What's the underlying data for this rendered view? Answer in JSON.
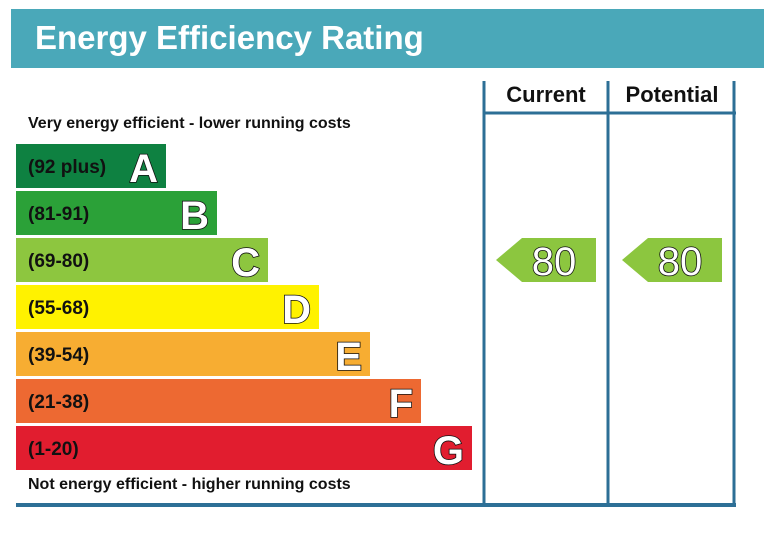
{
  "header": {
    "title": "Energy Efficiency Rating",
    "color": "#4aa8b9"
  },
  "captions": {
    "top": "Very energy efficient - lower running costs",
    "bottom": "Not energy efficient - higher running costs"
  },
  "columns": {
    "current": "Current",
    "potential": "Potential"
  },
  "colors": {
    "frame": "#2d6f96",
    "arrow": "#8cc63f",
    "A": "#0e8141",
    "B": "#2ba138",
    "C": "#8dc63f",
    "D": "#fff200",
    "E": "#f7ad32",
    "F": "#ed6932",
    "G": "#e11d2f"
  },
  "chart_data": {
    "type": "bar",
    "categories": [
      "A",
      "B",
      "C",
      "D",
      "E",
      "F",
      "G"
    ],
    "bands": [
      {
        "letter": "A",
        "range": "(92 plus)",
        "min": 92,
        "max": null
      },
      {
        "letter": "B",
        "range": "(81-91)",
        "min": 81,
        "max": 91
      },
      {
        "letter": "C",
        "range": "(69-80)",
        "min": 69,
        "max": 80
      },
      {
        "letter": "D",
        "range": "(55-68)",
        "min": 55,
        "max": 68
      },
      {
        "letter": "E",
        "range": "(39-54)",
        "min": 39,
        "max": 54
      },
      {
        "letter": "F",
        "range": "(21-38)",
        "min": 21,
        "max": 38
      },
      {
        "letter": "G",
        "range": "(1-20)",
        "min": 1,
        "max": 20
      }
    ],
    "series": [
      {
        "name": "Current",
        "value": 80,
        "band": "C"
      },
      {
        "name": "Potential",
        "value": 80,
        "band": "C"
      }
    ]
  }
}
